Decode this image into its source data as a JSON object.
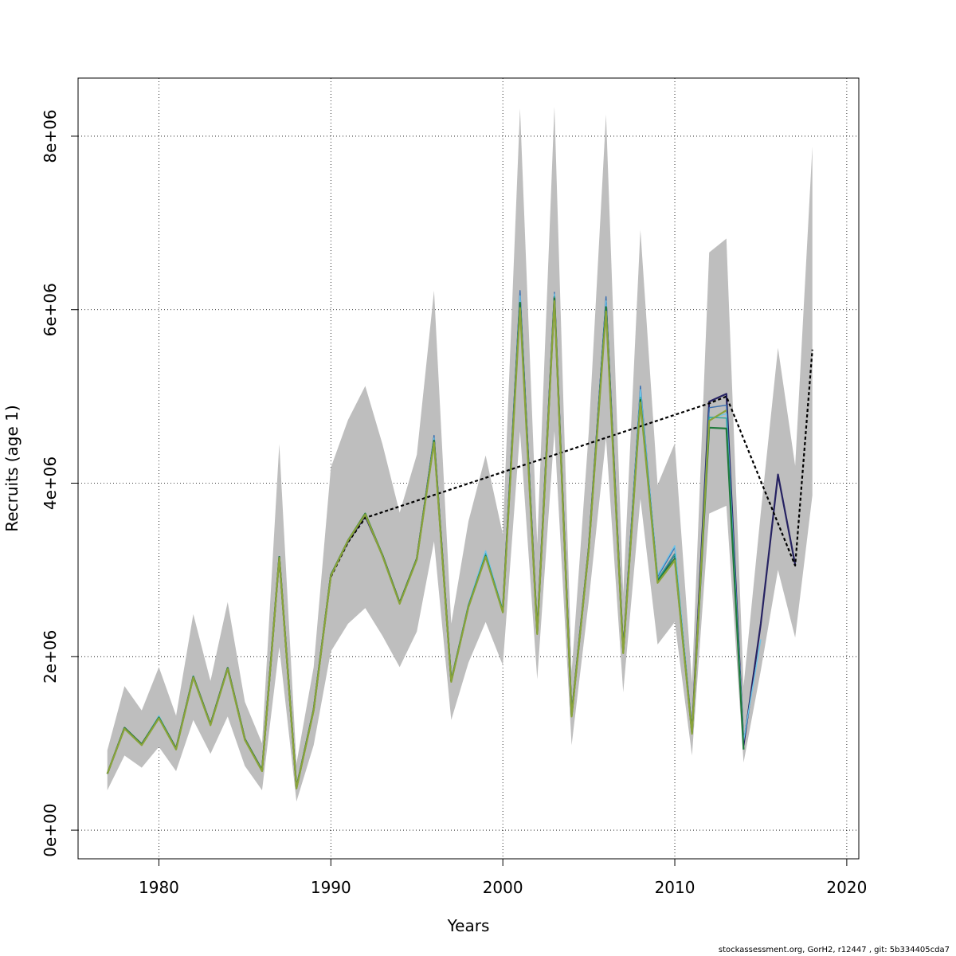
{
  "chart_data": {
    "type": "line",
    "title": "",
    "xlabel": "Years",
    "ylabel": "Recruits (age 1)",
    "xlim": [
      1975.3,
      2020.7
    ],
    "ylim": [
      -330000,
      8670000
    ],
    "x_ticks": [
      1980,
      1990,
      2000,
      2010,
      2020
    ],
    "x_tick_labels": [
      "1980",
      "1990",
      "2000",
      "2010",
      "2020"
    ],
    "y_ticks": [
      0,
      2000000,
      4000000,
      6000000,
      8000000
    ],
    "y_tick_labels": [
      "0e+00",
      "2e+06",
      "4e+06",
      "6e+06",
      "8e+06"
    ],
    "grid": true,
    "legend": "none",
    "band": {
      "x": [
        1977,
        1978,
        1979,
        1980,
        1981,
        1982,
        1983,
        1984,
        1985,
        1986,
        1987,
        1988,
        1989,
        1990,
        1991,
        1992,
        1993,
        1994,
        1995,
        1996,
        1997,
        1998,
        1999,
        2000,
        2001,
        2002,
        2003,
        2004,
        2005,
        2006,
        2007,
        2008,
        2009,
        2010,
        2011,
        2012,
        2013,
        2014,
        2015,
        2016,
        2017,
        2018
      ],
      "lower": [
        460000,
        860000,
        720000,
        960000,
        680000,
        1270000,
        880000,
        1310000,
        740000,
        460000,
        2110000,
        330000,
        980000,
        2060000,
        2380000,
        2560000,
        2240000,
        1880000,
        2290000,
        3330000,
        1270000,
        1930000,
        2400000,
        1900000,
        4600000,
        1740000,
        4600000,
        980000,
        2650000,
        4520000,
        1590000,
        3820000,
        2140000,
        2400000,
        860000,
        3650000,
        3740000,
        780000,
        1840000,
        3000000,
        2220000,
        3860000
      ],
      "upper": [
        920000,
        1660000,
        1380000,
        1880000,
        1320000,
        2490000,
        1720000,
        2630000,
        1480000,
        1000000,
        4450000,
        770000,
        1880000,
        4180000,
        4730000,
        5120000,
        4450000,
        3660000,
        4330000,
        6220000,
        2380000,
        3560000,
        4320000,
        3410000,
        8320000,
        3300000,
        8340000,
        1820000,
        4600000,
        8250000,
        2730000,
        6920000,
        3980000,
        4460000,
        1700000,
        6660000,
        6820000,
        1660000,
        3660000,
        5560000,
        4200000,
        7880000
      ]
    },
    "series": [
      {
        "color": "#262262",
        "width": 2.2,
        "x": [
          1977,
          1978,
          1979,
          1980,
          1981,
          1982,
          1983,
          1984,
          1985,
          1986,
          1987,
          1988,
          1989,
          1990,
          1991,
          1992,
          1993,
          1994,
          1995,
          1996,
          1997,
          1998,
          1999,
          2000,
          2001,
          2002,
          2003,
          2004,
          2005,
          2006,
          2007,
          2008,
          2009,
          2010,
          2011,
          2012,
          2013,
          2014,
          2015,
          2016,
          2017
        ],
        "y": [
          650000,
          1180000,
          990000,
          1300000,
          940000,
          1770000,
          1220000,
          1870000,
          1050000,
          690000,
          3150000,
          490000,
          1390000,
          2940000,
          3330000,
          3620000,
          3170000,
          2620000,
          3130000,
          4510000,
          1720000,
          2580000,
          3160000,
          2530000,
          6120000,
          2280000,
          6150000,
          1330000,
          3260000,
          6080000,
          2060000,
          5030000,
          2880000,
          3180000,
          1130000,
          4940000,
          5030000,
          980000,
          2380000,
          4100000,
          3060000
        ]
      },
      {
        "color": "#000000",
        "width": 2.2,
        "dash": "4,3",
        "x": [
          1990,
          1991,
          1992,
          2012,
          2013,
          2017,
          2018
        ],
        "y": [
          2920000,
          3320000,
          3600000,
          4920000,
          5000000,
          3050000,
          5540000
        ]
      },
      {
        "color": "#3a6fb0",
        "width": 1.4,
        "x": [
          1977,
          1978,
          1979,
          1980,
          1981,
          1982,
          1983,
          1984,
          1985,
          1986,
          1987,
          1988,
          1989,
          1990,
          1991,
          1992,
          1993,
          1994,
          1995,
          1996,
          1997,
          1998,
          1999,
          2000,
          2001,
          2002,
          2003,
          2004,
          2005,
          2006,
          2007,
          2008,
          2009,
          2010,
          2011,
          2012,
          2013,
          2014
        ],
        "y": [
          650000,
          1180000,
          990000,
          1310000,
          940000,
          1770000,
          1220000,
          1870000,
          1050000,
          690000,
          3150000,
          490000,
          1390000,
          2940000,
          3350000,
          3640000,
          3170000,
          2620000,
          3130000,
          4550000,
          1730000,
          2600000,
          3200000,
          2540000,
          6220000,
          2290000,
          6200000,
          1340000,
          3270000,
          6150000,
          2070000,
          5120000,
          2920000,
          3260000,
          1140000,
          4870000,
          4900000,
          1000000
        ]
      },
      {
        "color": "#6cc4e8",
        "width": 1.4,
        "x": [
          1977,
          1978,
          1979,
          1980,
          1981,
          1982,
          1983,
          1984,
          1985,
          1986,
          1987,
          1988,
          1989,
          1990,
          1991,
          1992,
          1993,
          1994,
          1995,
          1996,
          1997,
          1998,
          1999,
          2000,
          2001,
          2002,
          2003,
          2004,
          2005,
          2006,
          2007,
          2008,
          2009,
          2010,
          2011,
          2012,
          2013,
          2014,
          2015
        ],
        "y": [
          650000,
          1180000,
          990000,
          1320000,
          940000,
          1780000,
          1220000,
          1870000,
          1050000,
          690000,
          3150000,
          490000,
          1390000,
          2940000,
          3350000,
          3640000,
          3170000,
          2620000,
          3130000,
          4520000,
          1730000,
          2600000,
          3220000,
          2540000,
          6160000,
          2280000,
          6180000,
          1340000,
          3270000,
          6100000,
          2070000,
          5080000,
          2940000,
          3280000,
          1140000,
          4750000,
          4800000,
          1030000,
          2200000
        ]
      },
      {
        "color": "#2aa7a0",
        "width": 1.4,
        "x": [
          1977,
          1978,
          1979,
          1980,
          1981,
          1982,
          1983,
          1984,
          1985,
          1986,
          1987,
          1988,
          1989,
          1990,
          1991,
          1992,
          1993,
          1994,
          1995,
          1996,
          1997,
          1998,
          1999,
          2000,
          2001,
          2002,
          2003,
          2004,
          2005,
          2006,
          2007,
          2008,
          2009,
          2010,
          2011,
          2012,
          2013,
          2014
        ],
        "y": [
          650000,
          1180000,
          990000,
          1300000,
          940000,
          1770000,
          1220000,
          1870000,
          1050000,
          690000,
          3150000,
          490000,
          1390000,
          2940000,
          3340000,
          3640000,
          3170000,
          2620000,
          3130000,
          4480000,
          1720000,
          2590000,
          3180000,
          2530000,
          6050000,
          2280000,
          6150000,
          1330000,
          3260000,
          6000000,
          2060000,
          4990000,
          2890000,
          3180000,
          1130000,
          4760000,
          4750000,
          960000
        ]
      },
      {
        "color": "#1f7a3c",
        "width": 2.2,
        "x": [
          1977,
          1978,
          1979,
          1980,
          1981,
          1982,
          1983,
          1984,
          1985,
          1986,
          1987,
          1988,
          1989,
          1990,
          1991,
          1992,
          1993,
          1994,
          1995,
          1996,
          1997,
          1998,
          1999,
          2000,
          2001,
          2002,
          2003,
          2004,
          2005,
          2006,
          2007,
          2008,
          2009,
          2010,
          2011,
          2012,
          2013,
          2014
        ],
        "y": [
          650000,
          1180000,
          990000,
          1300000,
          940000,
          1770000,
          1220000,
          1870000,
          1050000,
          690000,
          3150000,
          490000,
          1390000,
          2940000,
          3340000,
          3650000,
          3170000,
          2620000,
          3130000,
          4490000,
          1720000,
          2580000,
          3160000,
          2520000,
          6080000,
          2270000,
          6130000,
          1320000,
          3250000,
          6030000,
          2050000,
          4960000,
          2870000,
          3130000,
          1120000,
          4640000,
          4630000,
          930000
        ]
      },
      {
        "color": "#8aa33a",
        "width": 2.2,
        "x": [
          1977,
          1978,
          1979,
          1980,
          1981,
          1982,
          1983,
          1984,
          1985,
          1986,
          1987,
          1988,
          1989,
          1990,
          1991,
          1992,
          1993,
          1994,
          1995,
          1996,
          1997,
          1998,
          1999,
          2000,
          2001,
          2002,
          2003,
          2004,
          2005,
          2006,
          2007,
          2008,
          2009,
          2010,
          2011,
          2012,
          2013
        ],
        "y": [
          650000,
          1170000,
          980000,
          1290000,
          930000,
          1760000,
          1210000,
          1860000,
          1040000,
          680000,
          3140000,
          480000,
          1380000,
          2930000,
          3340000,
          3640000,
          3160000,
          2610000,
          3120000,
          4470000,
          1710000,
          2570000,
          3150000,
          2510000,
          6020000,
          2260000,
          6100000,
          1310000,
          3240000,
          5980000,
          2040000,
          4930000,
          2850000,
          3110000,
          1110000,
          4720000,
          4840000
        ]
      }
    ]
  },
  "footer": "stockassessment.org, GorH2, r12447 , git: 5b334405cda7"
}
